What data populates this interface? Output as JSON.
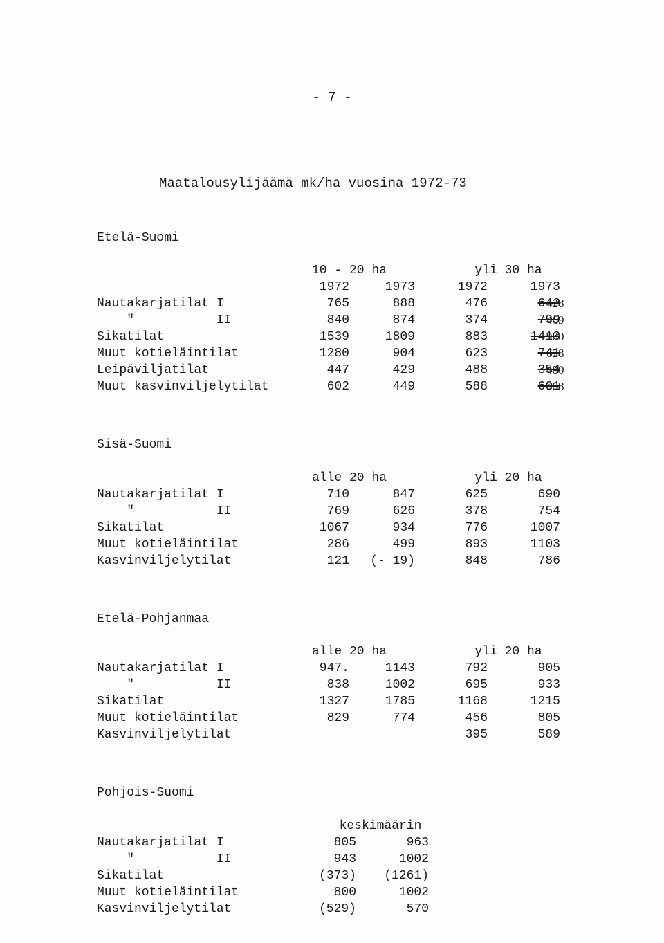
{
  "page_number": "- 7 -",
  "title": "Maatalousylijäämä mk/ha vuosina 1972-73",
  "sections": [
    {
      "title": "Etelä-Suomi",
      "col_group_a": "10 - 20 ha",
      "col_group_b": "yli 30 ha",
      "years_a": [
        "1972",
        "1973"
      ],
      "years_b": [
        "1972",
        "1973"
      ],
      "rows": [
        {
          "label": "Nautakarjatilat I",
          "a1": "765",
          "a2": "888",
          "b1": "476",
          "b2": "642",
          "b2_strike": true,
          "annot": "428"
        },
        {
          "label": "    \"           II",
          "a1": "840",
          "a2": "874",
          "b1": "374",
          "b2": "799",
          "b2_strike": true,
          "annot": "469"
        },
        {
          "label": "Sikatilat",
          "a1": "1539",
          "a2": "1809",
          "b1": "883",
          "b2": "1413",
          "b2_strike": true,
          "annot": "980"
        },
        {
          "label": "Muut kotieläintilat",
          "a1": "1280",
          "a2": "904",
          "b1": "623",
          "b2": "741",
          "b2_strike": true,
          "annot": "628"
        },
        {
          "label": "Leipäviljatilat",
          "a1": "447",
          "a2": "429",
          "b1": "488",
          "b2": "354",
          "b2_strike": true,
          "annot": "480"
        },
        {
          "label": "Muut kasvinviljelytilat",
          "a1": "602",
          "a2": "449",
          "b1": "588",
          "b2": "601",
          "b2_strike": true,
          "annot": "388"
        }
      ]
    },
    {
      "title": "Sisä-Suomi",
      "col_group_a": "alle 20 ha",
      "col_group_b": "yli 20 ha",
      "rows": [
        {
          "label": "Nautakarjatilat I",
          "a1": "710",
          "a2": "847",
          "b1": "625",
          "b2": "690"
        },
        {
          "label": "    \"           II",
          "a1": "769",
          "a2": "626",
          "b1": "378",
          "b2": "754"
        },
        {
          "label": "Sikatilat",
          "a1": "1067",
          "a2": "934",
          "b1": "776",
          "b2": "1007"
        },
        {
          "label": "Muut kotieläintilat",
          "a1": "286",
          "a2": "499",
          "b1": "893",
          "b2": "1103"
        },
        {
          "label": "Kasvinviljelytilat",
          "a1": "121",
          "a2": "(- 19)",
          "b1": "848",
          "b2": "786"
        }
      ]
    },
    {
      "title": "Etelä-Pohjanmaa",
      "col_group_a": "alle 20 ha",
      "col_group_b": "yli 20 ha",
      "rows": [
        {
          "label": "Nautakarjatilat I",
          "a1": "947.",
          "a2": "1143",
          "b1": "792",
          "b2": "905"
        },
        {
          "label": "    \"           II",
          "a1": "838",
          "a2": "1002",
          "b1": "695",
          "b2": "933"
        },
        {
          "label": "Sikatilat",
          "a1": "1327",
          "a2": "1785",
          "b1": "1168",
          "b2": "1215"
        },
        {
          "label": "Muut kotieläintilat",
          "a1": "829",
          "a2": "774",
          "b1": "456",
          "b2": "805"
        },
        {
          "label": "Kasvinviljelytilat",
          "a1": "",
          "a2": "",
          "b1": "395",
          "b2": "589"
        }
      ]
    },
    {
      "title": "Pohjois-Suomi",
      "col_group_a": "keskimäärin",
      "rows": [
        {
          "label": "Nautakarjatilat I",
          "a1": "805",
          "a2": "963"
        },
        {
          "label": "    \"           II",
          "a1": "943",
          "a2": "1002"
        },
        {
          "label": "Sikatilat",
          "a1": "(373)",
          "a2": "(1261)"
        },
        {
          "label": "Muut kotieläintilat",
          "a1": "800",
          "a2": "1002"
        },
        {
          "label": "Kasvinviljelytilat",
          "a1": "(529)",
          "a2": "570"
        }
      ]
    }
  ]
}
